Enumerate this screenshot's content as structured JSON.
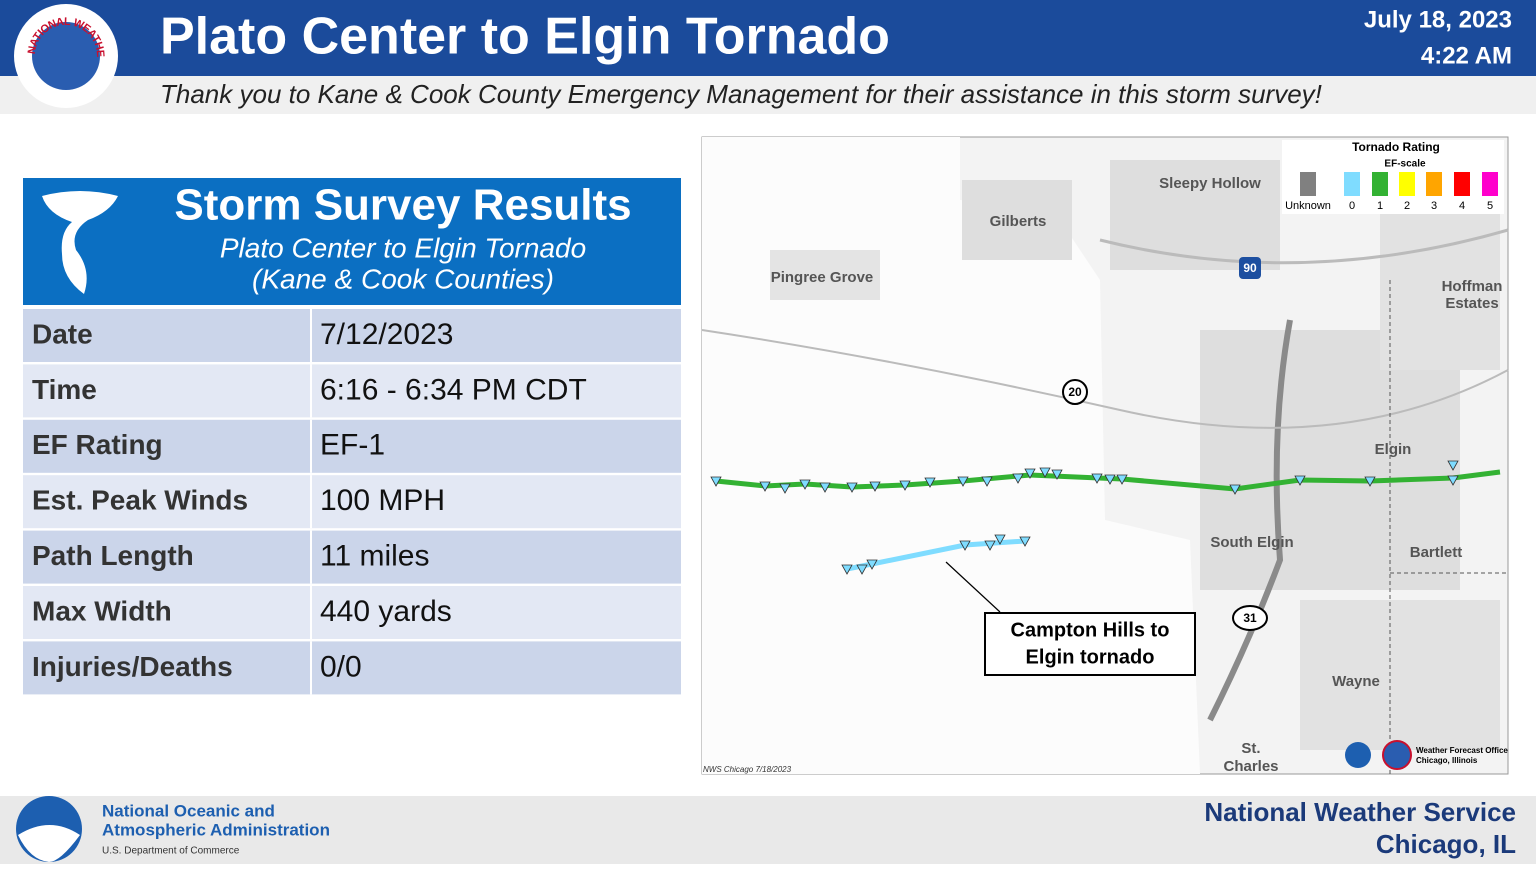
{
  "header": {
    "title": "Plato Center to Elgin Tornado",
    "date": "July 18, 2023",
    "time": "4:22 AM",
    "subtitle": "Thank you to Kane & Cook County Emergency Management for their assistance in this storm survey!",
    "logo_text": "NATIONAL WEATHER SERVICE"
  },
  "summary": {
    "title": "Storm Survey Results",
    "subtitle_1": "Plato Center to Elgin Tornado",
    "subtitle_2": "(Kane & Cook Counties)",
    "rows": [
      [
        "Date",
        "7/12/2023"
      ],
      [
        "Time",
        "6:16 - 6:34 PM CDT"
      ],
      [
        "EF Rating",
        "EF-1"
      ],
      [
        "Est. Peak Winds",
        "100 MPH"
      ],
      [
        "Path Length",
        "11 miles"
      ],
      [
        "Max Width",
        "440 yards"
      ],
      [
        "Injuries/Deaths",
        "0/0"
      ]
    ]
  },
  "map": {
    "legend": {
      "title": "Tornado Rating",
      "subtitle": "EF-scale",
      "items": [
        {
          "label": "Unknown",
          "color": "#808080"
        },
        {
          "label": "0",
          "color": "#7fdcff"
        },
        {
          "label": "1",
          "color": "#33b233"
        },
        {
          "label": "2",
          "color": "#ffff00"
        },
        {
          "label": "3",
          "color": "#ffa500"
        },
        {
          "label": "4",
          "color": "#ff0000"
        },
        {
          "label": "5",
          "color": "#ff00cc"
        }
      ]
    },
    "places": [
      "Sleepy Hollow",
      "Gilberts",
      "Pingree Grove",
      "Hoffman",
      "Estates",
      "Elgin",
      "South Elgin",
      "Bartlett",
      "Wayne",
      "St.",
      "Charles"
    ],
    "highways": [
      "90",
      "20",
      "31"
    ],
    "callout": [
      "Campton Hills to",
      "Elgin tornado"
    ],
    "credit": "NWS Chicago  7/18/2023",
    "wfo": [
      "Weather Forecast Office",
      "Chicago, Illinois"
    ]
  },
  "footer": {
    "noaa_1": "National Oceanic and",
    "noaa_2": "Atmospheric Administration",
    "noaa_3": "U.S. Department of Commerce",
    "office": "National Weather Service",
    "location": "Chicago, IL"
  }
}
